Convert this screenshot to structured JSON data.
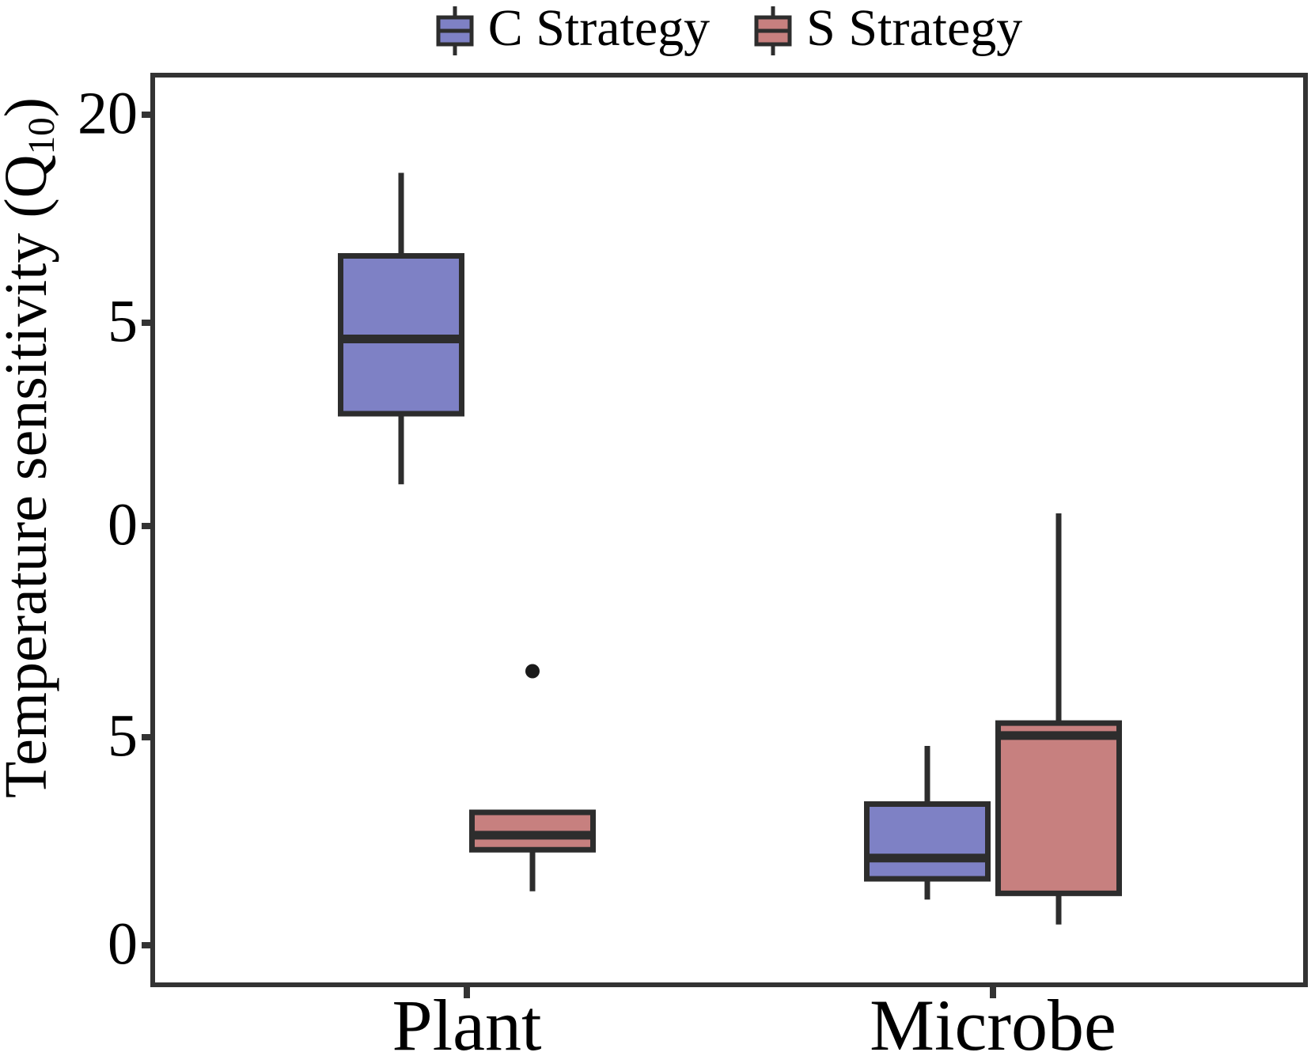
{
  "figure": {
    "background": "#ffffff"
  },
  "legend": {
    "items": [
      {
        "label": "C Strategy",
        "color": "#7E81C5"
      },
      {
        "label": "S Strategy",
        "color": "#C7807F"
      }
    ]
  },
  "axes": {
    "y_title_main": "Temperature sensitivity (Q",
    "y_title_sub": "10",
    "y_title_close": ")",
    "y_tick_labels": [
      "20",
      "5",
      "0",
      "5",
      "0"
    ],
    "x_tick_labels": [
      "Plant",
      "Microbe"
    ]
  },
  "style": {
    "box_stroke": "#2d2d2d",
    "axis_stroke": "#333333",
    "outlier_color": "#1a1a1a"
  },
  "chart_data": {
    "type": "boxplot",
    "title": "",
    "xlabel": "",
    "ylabel": "Temperature sensitivity (Q10)",
    "categories": [
      "Plant",
      "Microbe"
    ],
    "legend_position": "top-center",
    "grid": false,
    "y_axis": {
      "min": 0,
      "max": 20,
      "tick_values": [
        20,
        15,
        10,
        5,
        0
      ],
      "tick_labels_as_shown": [
        "20",
        "5",
        "0",
        "5",
        "0"
      ],
      "note": "Axis rendered exactly as in source image: evenly spaced ticks labeled 20, 5, 0, 5, 0 (leading digit of 15 and 10 not visible in source)."
    },
    "series": [
      {
        "name": "C Strategy",
        "color": "#7E81C5",
        "boxes": [
          {
            "category": "Plant",
            "whisker_low": 11.1,
            "q1": 12.8,
            "median": 14.6,
            "q3": 16.6,
            "whisker_high": 18.6,
            "outliers": []
          },
          {
            "category": "Microbe",
            "whisker_low": 1.1,
            "q1": 1.6,
            "median": 2.1,
            "q3": 3.4,
            "whisker_high": 4.8,
            "outliers": []
          }
        ]
      },
      {
        "name": "S Strategy",
        "color": "#C7807F",
        "boxes": [
          {
            "category": "Plant",
            "whisker_low": 1.3,
            "q1": 2.3,
            "median": 2.65,
            "q3": 3.2,
            "whisker_high": 3.2,
            "outliers": [
              6.6
            ]
          },
          {
            "category": "Microbe",
            "whisker_low": 0.5,
            "q1": 1.25,
            "median": 5.05,
            "q3": 5.35,
            "whisker_high": 10.4,
            "outliers": []
          }
        ]
      }
    ]
  }
}
